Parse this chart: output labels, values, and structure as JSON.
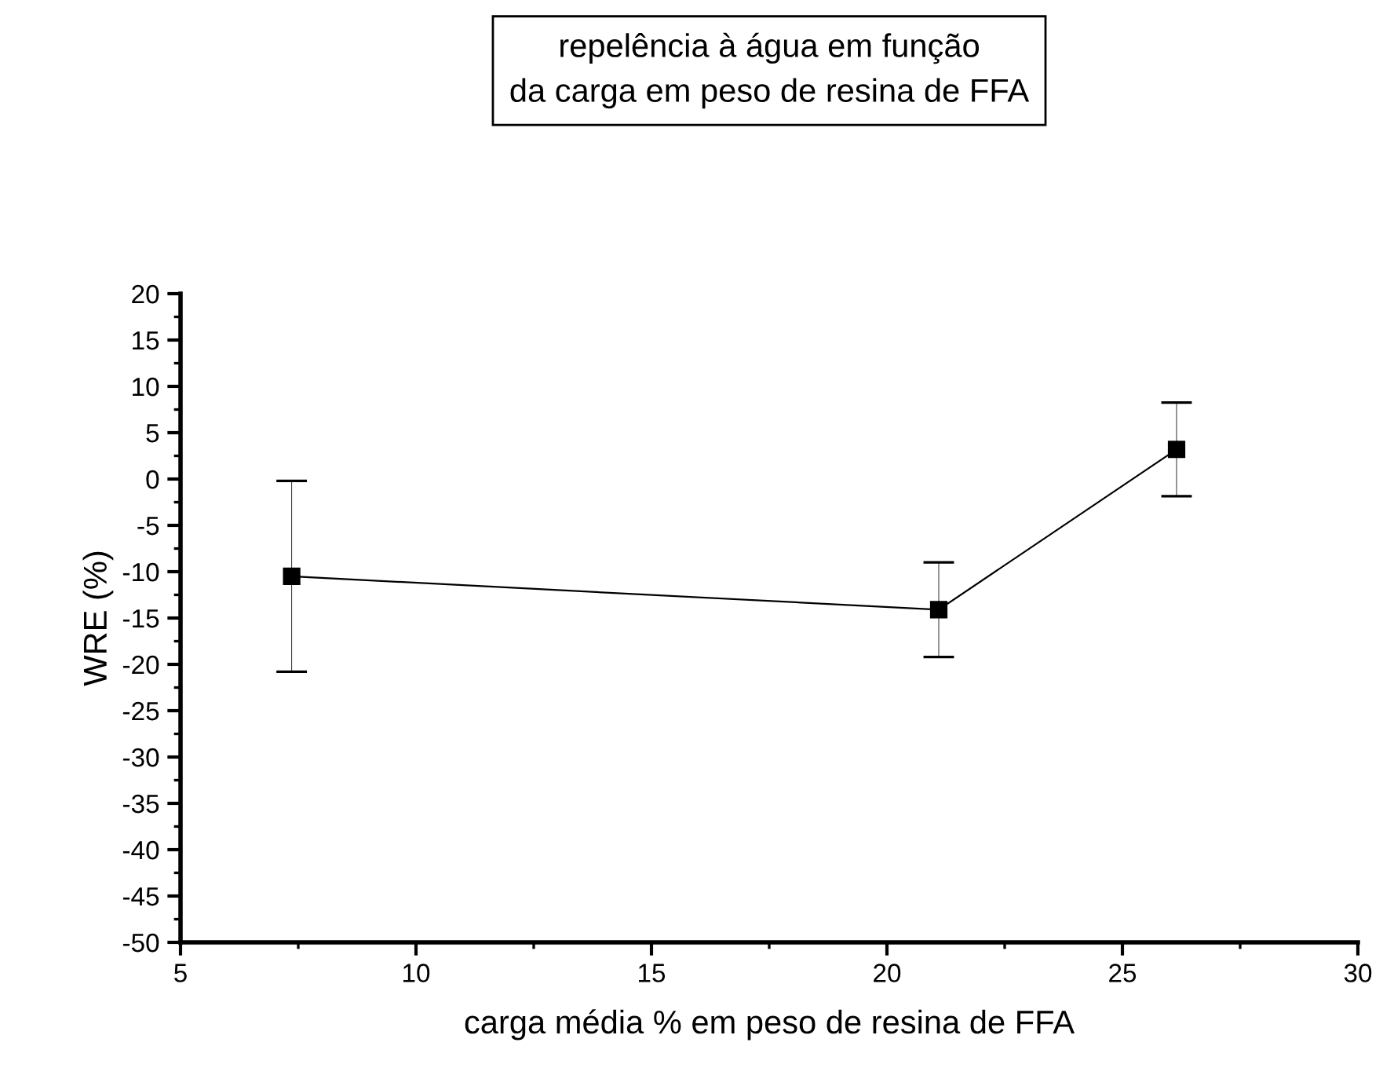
{
  "chart_data": {
    "type": "line",
    "title": "repelência à água em função\nda carga em peso de resina de FFA",
    "xlabel": "carga média % em peso de resina de FFA",
    "ylabel": "WRE (%)",
    "x": [
      7.36,
      21.1,
      26.15
    ],
    "series": [
      {
        "color": "#000000",
        "values": [
          -10.5,
          -14.1,
          3.2
        ],
        "errors": [
          10.3,
          5.1,
          5.05
        ]
      }
    ],
    "xlim": [
      5,
      30
    ],
    "xticks": [
      5,
      10,
      15,
      20,
      25,
      30
    ],
    "ylim": [
      -50,
      20
    ],
    "yticks": [
      20,
      15,
      10,
      5,
      0,
      -5,
      -10,
      -15,
      -20,
      -25,
      -30,
      -35,
      -40,
      -45,
      -50
    ],
    "marker": "square",
    "line_style": "solid",
    "grid": false,
    "legend": false
  }
}
